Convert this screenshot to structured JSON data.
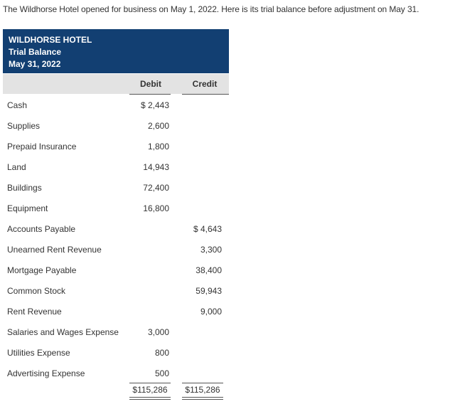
{
  "intro": "The Wildhorse Hotel opened for business on May 1, 2022. Here is its trial balance before adjustment on May 31.",
  "header": {
    "company": "WILDHORSE HOTEL",
    "statement": "Trial Balance",
    "date": "May 31, 2022"
  },
  "columns": {
    "debit": "Debit",
    "credit": "Credit"
  },
  "rows": [
    {
      "account": "Cash",
      "debit": "$ 2,443",
      "credit": ""
    },
    {
      "account": "Supplies",
      "debit": "2,600",
      "credit": ""
    },
    {
      "account": "Prepaid Insurance",
      "debit": "1,800",
      "credit": ""
    },
    {
      "account": "Land",
      "debit": "14,943",
      "credit": ""
    },
    {
      "account": "Buildings",
      "debit": "72,400",
      "credit": ""
    },
    {
      "account": "Equipment",
      "debit": "16,800",
      "credit": ""
    },
    {
      "account": "Accounts Payable",
      "debit": "",
      "credit": "$ 4,643"
    },
    {
      "account": "Unearned Rent Revenue",
      "debit": "",
      "credit": "3,300"
    },
    {
      "account": "Mortgage Payable",
      "debit": "",
      "credit": "38,400"
    },
    {
      "account": "Common Stock",
      "debit": "",
      "credit": "59,943"
    },
    {
      "account": "Rent Revenue",
      "debit": "",
      "credit": "9,000"
    },
    {
      "account": "Salaries and Wages Expense",
      "debit": "3,000",
      "credit": ""
    },
    {
      "account": "Utilities Expense",
      "debit": "800",
      "credit": ""
    },
    {
      "account": "Advertising Expense",
      "debit": "500",
      "credit": ""
    }
  ],
  "totals": {
    "debit": "$115,286",
    "credit": "$115,286"
  }
}
